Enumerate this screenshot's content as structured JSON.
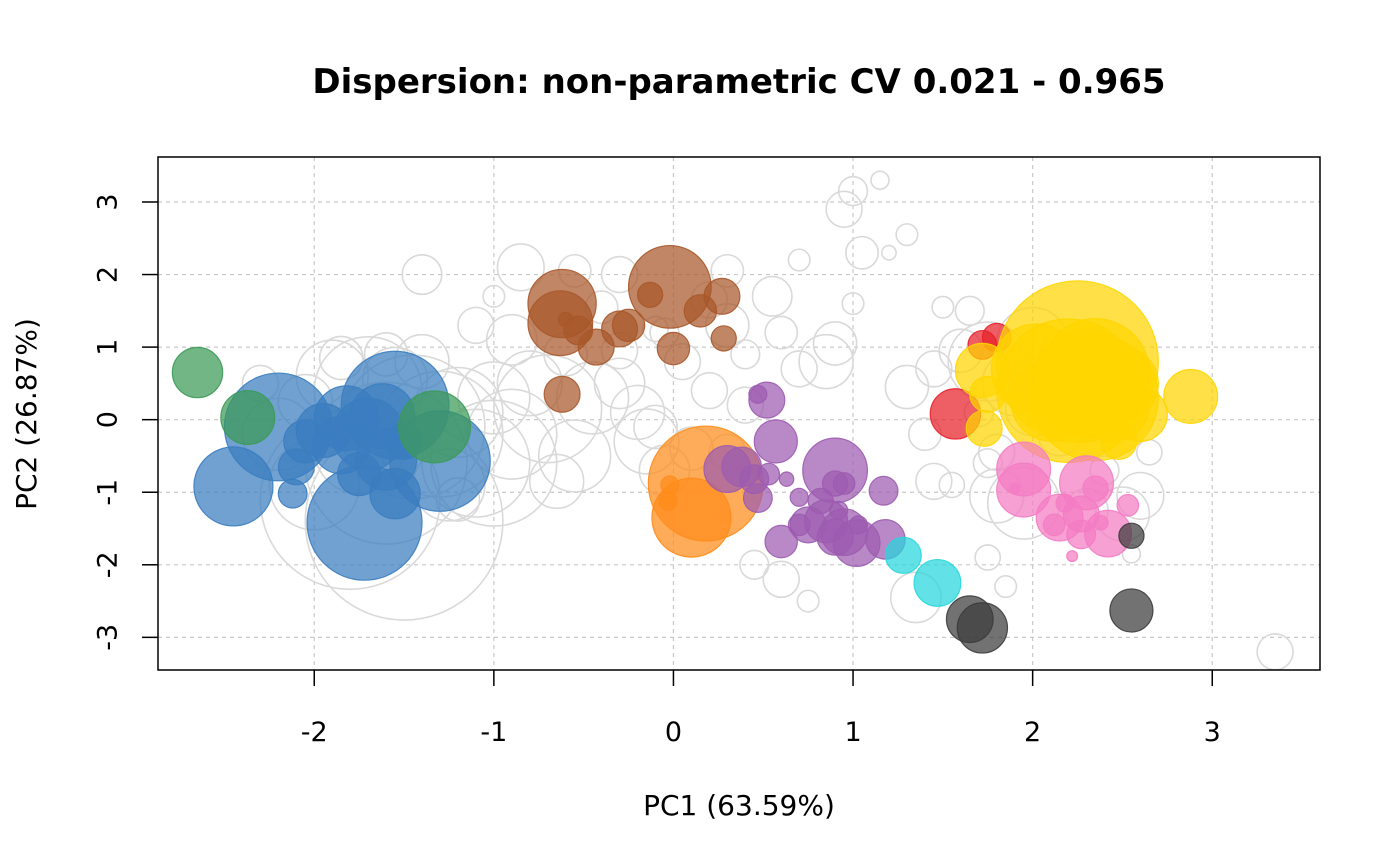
{
  "chart_data": {
    "type": "scatter",
    "title": "Dispersion: non-parametric CV 0.021 - 0.965",
    "xlabel": "PC1 (63.59%)",
    "ylabel": "PC2 (26.87%)",
    "xlim": [
      -2.87,
      3.6
    ],
    "ylim": [
      -3.45,
      3.62
    ],
    "xticks": [
      -2,
      -1,
      0,
      1,
      2,
      3
    ],
    "yticks": [
      -3,
      -2,
      -1,
      0,
      1,
      2,
      3
    ],
    "xtick_labels": [
      "-2",
      "-1",
      "0",
      "1",
      "2",
      "3"
    ],
    "ytick_labels": [
      "-3",
      "-2",
      "-1",
      "0",
      "1",
      "2",
      "3"
    ],
    "grid": true,
    "legend": "none",
    "point_size": "radius proportional to dispersion (CV)",
    "colors": {
      "background_points": "#d9d9d9",
      "blue": "#3a7dbf",
      "green": "#3b9a57",
      "brown": "#a8582a",
      "purple": "#9c5bb0",
      "orange": "#ff8c1a",
      "cyan": "#26d7dc",
      "red": "#e8202a",
      "yellow": "#ffd500",
      "pink": "#f47cc3",
      "dark": "#3c3c3c"
    },
    "series": [
      {
        "group": "background",
        "style": "hollow",
        "color": "#d9d9d9",
        "points": [
          [
            -2.0,
            -0.9,
            0.25
          ],
          [
            -1.8,
            -1.1,
            0.5
          ],
          [
            -1.6,
            -0.6,
            0.45
          ],
          [
            -1.5,
            -1.4,
            0.55
          ],
          [
            -1.3,
            -0.2,
            0.35
          ],
          [
            -1.7,
            0.4,
            0.3
          ],
          [
            -1.9,
            0.6,
            0.2
          ],
          [
            -1.2,
            0.1,
            0.25
          ],
          [
            -1.4,
            0.8,
            0.15
          ],
          [
            -1.1,
            -0.6,
            0.3
          ],
          [
            -2.2,
            -0.2,
            0.2
          ],
          [
            -1.6,
            0.9,
            0.12
          ],
          [
            -1.0,
            0.3,
            0.2
          ],
          [
            -1.45,
            -0.1,
            0.4
          ],
          [
            -2.05,
            0.25,
            0.15
          ],
          [
            -1.75,
            -0.4,
            0.25
          ],
          [
            -1.25,
            -0.9,
            0.2
          ],
          [
            -1.55,
            0.55,
            0.18
          ],
          [
            -2.3,
            0.5,
            0.1
          ],
          [
            -1.85,
            0.85,
            0.12
          ],
          [
            -1.4,
            2.0,
            0.11
          ],
          [
            -0.85,
            2.1,
            0.13
          ],
          [
            -0.55,
            2.05,
            0.09
          ],
          [
            -0.3,
            2.0,
            0.1
          ],
          [
            0.3,
            2.05,
            0.09
          ],
          [
            0.55,
            1.7,
            0.11
          ],
          [
            0.7,
            2.2,
            0.06
          ],
          [
            -1.1,
            1.3,
            0.1
          ],
          [
            -0.9,
            1.1,
            0.14
          ],
          [
            -0.6,
            0.9,
            0.12
          ],
          [
            -0.3,
            0.95,
            0.1
          ],
          [
            -0.05,
            1.2,
            0.08
          ],
          [
            0.3,
            1.3,
            0.12
          ],
          [
            0.6,
            1.2,
            0.09
          ],
          [
            0.9,
            1.05,
            0.12
          ],
          [
            1.0,
            1.6,
            0.06
          ],
          [
            1.05,
            2.3,
            0.09
          ],
          [
            1.0,
            3.15,
            0.08
          ],
          [
            0.95,
            2.9,
            0.1
          ],
          [
            1.15,
            3.3,
            0.05
          ],
          [
            1.3,
            2.55,
            0.06
          ],
          [
            1.2,
            2.3,
            0.04
          ],
          [
            0.85,
            0.8,
            0.15
          ],
          [
            0.4,
            0.9,
            0.08
          ],
          [
            -0.45,
            0.3,
            0.2
          ],
          [
            -0.7,
            0.15,
            0.3
          ],
          [
            -0.9,
            -0.2,
            0.25
          ],
          [
            -0.55,
            -0.5,
            0.2
          ],
          [
            -0.2,
            0.1,
            0.15
          ],
          [
            -0.1,
            -0.1,
            0.12
          ],
          [
            -0.65,
            -0.85,
            0.15
          ],
          [
            -1.0,
            -0.6,
            0.35
          ],
          [
            -1.2,
            -1.1,
            0.12
          ],
          [
            -0.8,
            0.5,
            0.18
          ],
          [
            -0.3,
            0.5,
            0.14
          ],
          [
            -0.15,
            -0.3,
            0.18
          ],
          [
            0.2,
            0.4,
            0.1
          ],
          [
            0.1,
            -0.4,
            0.12
          ],
          [
            0.4,
            0.2,
            0.1
          ],
          [
            0.05,
            0.8,
            0.1
          ],
          [
            -0.05,
            -0.7,
            0.14
          ],
          [
            0.3,
            -0.45,
            0.1
          ],
          [
            0.6,
            -2.2,
            0.1
          ],
          [
            0.75,
            -2.5,
            0.06
          ],
          [
            0.45,
            -2.0,
            0.08
          ],
          [
            1.35,
            -2.45,
            0.14
          ],
          [
            1.75,
            -1.9,
            0.07
          ],
          [
            1.85,
            -2.3,
            0.06
          ],
          [
            2.55,
            -1.85,
            0.05
          ],
          [
            3.35,
            -3.2,
            0.1
          ],
          [
            2.0,
            1.05,
            0.2
          ],
          [
            1.75,
            0.8,
            0.22
          ],
          [
            1.9,
            0.5,
            0.18
          ],
          [
            1.6,
            0.95,
            0.12
          ],
          [
            1.45,
            0.7,
            0.1
          ],
          [
            1.3,
            0.45,
            0.12
          ],
          [
            2.0,
            0.15,
            0.15
          ],
          [
            2.15,
            -0.2,
            0.12
          ],
          [
            1.8,
            -0.45,
            0.1
          ],
          [
            1.55,
            -0.9,
            0.07
          ],
          [
            1.75,
            -0.6,
            0.08
          ],
          [
            1.95,
            -1.15,
            0.2
          ],
          [
            1.8,
            -1.05,
            0.15
          ],
          [
            2.3,
            -1.25,
            0.12
          ],
          [
            2.5,
            -1.3,
            0.15
          ],
          [
            2.6,
            -1.05,
            0.13
          ],
          [
            1.65,
            1.5,
            0.08
          ],
          [
            1.5,
            1.55,
            0.06
          ],
          [
            2.4,
            -0.7,
            0.08
          ],
          [
            2.2,
            0.3,
            0.18
          ],
          [
            2.45,
            0.35,
            0.1
          ],
          [
            1.7,
            0.1,
            0.08
          ],
          [
            2.65,
            -0.45,
            0.07
          ],
          [
            1.4,
            -0.2,
            0.09
          ],
          [
            1.45,
            -0.85,
            0.1
          ],
          [
            -0.4,
            1.55,
            0.09
          ],
          [
            -0.1,
            1.25,
            0.07
          ],
          [
            0.7,
            0.7,
            0.1
          ],
          [
            -1.0,
            1.7,
            0.06
          ],
          [
            0.2,
            1.65,
            0.1
          ]
        ]
      },
      {
        "group": "blue",
        "color": "#3a7dbf",
        "points": [
          [
            -2.2,
            -0.1,
            0.3
          ],
          [
            -1.55,
            0.2,
            0.3
          ],
          [
            -1.72,
            -1.42,
            0.32
          ],
          [
            -2.45,
            -0.92,
            0.22
          ],
          [
            -1.3,
            -0.57,
            0.28
          ],
          [
            -1.82,
            0.02,
            0.18
          ],
          [
            -1.7,
            -0.2,
            0.2
          ],
          [
            -1.6,
            -0.55,
            0.17
          ],
          [
            -1.75,
            -0.75,
            0.12
          ],
          [
            -2.05,
            -0.3,
            0.12
          ],
          [
            -2.1,
            -0.65,
            0.1
          ],
          [
            -2.12,
            -1.02,
            0.08
          ],
          [
            -1.55,
            -1.02,
            0.14
          ],
          [
            -1.95,
            -0.15,
            0.15
          ],
          [
            -1.62,
            0.05,
            0.18
          ],
          [
            -1.85,
            -0.35,
            0.16
          ],
          [
            -1.5,
            -0.3,
            0.1
          ]
        ]
      },
      {
        "group": "green",
        "color": "#3b9a57",
        "points": [
          [
            -2.65,
            0.65,
            0.14
          ],
          [
            -2.37,
            0.03,
            0.15
          ],
          [
            -1.33,
            -0.1,
            0.2
          ]
        ]
      },
      {
        "group": "brown",
        "color": "#a8582a",
        "points": [
          [
            -0.62,
            1.6,
            0.19
          ],
          [
            -0.02,
            1.83,
            0.23
          ],
          [
            -0.63,
            1.33,
            0.18
          ],
          [
            0.27,
            1.7,
            0.1
          ],
          [
            -0.3,
            1.25,
            0.1
          ],
          [
            -0.43,
            1.0,
            0.1
          ],
          [
            -0.53,
            1.23,
            0.08
          ],
          [
            0.15,
            1.5,
            0.09
          ],
          [
            0.0,
            0.98,
            0.09
          ],
          [
            -0.62,
            0.35,
            0.1
          ],
          [
            -0.13,
            1.72,
            0.07
          ],
          [
            -0.25,
            1.3,
            0.09
          ],
          [
            0.28,
            1.12,
            0.07
          ],
          [
            -0.6,
            1.38,
            0.04
          ]
        ]
      },
      {
        "group": "orange",
        "color": "#ff8c1a",
        "points": [
          [
            0.18,
            -0.88,
            0.32
          ],
          [
            0.1,
            -1.35,
            0.22
          ],
          [
            -0.03,
            -1.12,
            0.05
          ],
          [
            -0.02,
            -0.9,
            0.05
          ]
        ]
      },
      {
        "group": "purple",
        "color": "#9c5bb0",
        "points": [
          [
            0.9,
            -0.7,
            0.18
          ],
          [
            0.3,
            -0.68,
            0.13
          ],
          [
            0.57,
            -0.3,
            0.12
          ],
          [
            0.52,
            0.27,
            0.1
          ],
          [
            0.38,
            -0.65,
            0.11
          ],
          [
            0.47,
            -1.08,
            0.08
          ],
          [
            0.6,
            -1.68,
            0.09
          ],
          [
            0.75,
            -1.45,
            0.1
          ],
          [
            0.85,
            -1.4,
            0.12
          ],
          [
            0.95,
            -1.55,
            0.13
          ],
          [
            1.02,
            -1.7,
            0.13
          ],
          [
            1.18,
            -1.65,
            0.11
          ],
          [
            0.9,
            -1.62,
            0.1
          ],
          [
            1.17,
            -0.98,
            0.08
          ],
          [
            0.82,
            -1.12,
            0.07
          ],
          [
            0.9,
            -0.88,
            0.07
          ],
          [
            0.45,
            -0.82,
            0.08
          ],
          [
            0.53,
            -0.75,
            0.06
          ],
          [
            0.63,
            -0.82,
            0.04
          ],
          [
            0.7,
            -1.07,
            0.05
          ],
          [
            0.95,
            -0.88,
            0.06
          ],
          [
            1.03,
            -1.45,
            0.05
          ],
          [
            0.92,
            -1.25,
            0.05
          ],
          [
            0.47,
            0.35,
            0.05
          ],
          [
            0.7,
            -1.45,
            0.06
          ]
        ]
      },
      {
        "group": "cyan",
        "color": "#26d7dc",
        "points": [
          [
            1.47,
            -2.25,
            0.13
          ],
          [
            1.28,
            -1.87,
            0.1
          ]
        ]
      },
      {
        "group": "red",
        "color": "#e8202a",
        "points": [
          [
            1.57,
            0.08,
            0.14
          ],
          [
            1.8,
            1.13,
            0.08
          ],
          [
            1.72,
            1.03,
            0.08
          ]
        ]
      },
      {
        "group": "yellow",
        "color": "#ffd500",
        "points": [
          [
            2.25,
            0.8,
            0.45
          ],
          [
            2.2,
            0.4,
            0.4
          ],
          [
            2.35,
            0.3,
            0.35
          ],
          [
            2.35,
            0.65,
            0.3
          ],
          [
            2.02,
            0.7,
            0.25
          ],
          [
            2.5,
            0.5,
            0.2
          ],
          [
            2.6,
            0.07,
            0.15
          ],
          [
            2.88,
            0.32,
            0.15
          ],
          [
            1.72,
            0.68,
            0.15
          ],
          [
            1.73,
            -0.12,
            0.1
          ],
          [
            2.48,
            -0.3,
            0.1
          ],
          [
            2.45,
            0.2,
            0.2
          ],
          [
            2.1,
            0.25,
            0.22
          ],
          [
            2.3,
            0.5,
            0.3
          ],
          [
            1.75,
            0.35,
            0.1
          ]
        ]
      },
      {
        "group": "pink",
        "color": "#f47cc3",
        "points": [
          [
            1.95,
            -0.68,
            0.15
          ],
          [
            1.95,
            -0.97,
            0.15
          ],
          [
            2.3,
            -0.87,
            0.15
          ],
          [
            2.42,
            -1.57,
            0.13
          ],
          [
            2.15,
            -1.35,
            0.13
          ],
          [
            2.27,
            -1.3,
            0.1
          ],
          [
            2.27,
            -1.58,
            0.08
          ],
          [
            2.12,
            -1.45,
            0.06
          ],
          [
            2.35,
            -0.95,
            0.07
          ],
          [
            2.53,
            -1.18,
            0.06
          ],
          [
            2.22,
            -1.88,
            0.03
          ],
          [
            2.38,
            -1.42,
            0.04
          ],
          [
            1.9,
            -0.95,
            0.03
          ],
          [
            2.18,
            -1.15,
            0.05
          ]
        ]
      },
      {
        "group": "dark",
        "color": "#3c3c3c",
        "points": [
          [
            1.72,
            -2.87,
            0.14
          ],
          [
            1.65,
            -2.75,
            0.13
          ],
          [
            2.55,
            -2.63,
            0.12
          ],
          [
            2.55,
            -1.6,
            0.07
          ]
        ]
      }
    ]
  }
}
